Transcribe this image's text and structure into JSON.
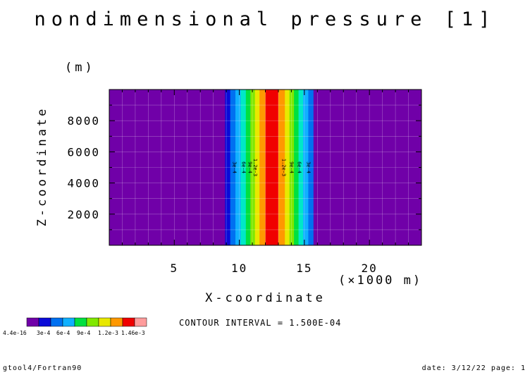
{
  "chart_data": {
    "type": "heatmap",
    "title": "nondimensional pressure [1]",
    "xlabel": "X-coordinate",
    "ylabel": "Z-coordinate",
    "x_unit_label": "(×1000 m)",
    "y_unit_label": "(m)",
    "xlim": [
      0,
      24
    ],
    "ylim": [
      0,
      10000
    ],
    "x_ticks": [
      5,
      10,
      15,
      20
    ],
    "y_ticks": [
      2000,
      4000,
      6000,
      8000
    ],
    "bands": [
      {
        "x0": 0.0,
        "x1": 8.9,
        "level": 0
      },
      {
        "x0": 8.9,
        "x1": 9.3,
        "level": 1
      },
      {
        "x0": 9.3,
        "x1": 9.7,
        "level": 2
      },
      {
        "x0": 9.7,
        "x1": 10.1,
        "level": 3
      },
      {
        "x0": 10.1,
        "x1": 10.5,
        "level": 4
      },
      {
        "x0": 10.5,
        "x1": 10.85,
        "level": 5
      },
      {
        "x0": 10.85,
        "x1": 11.2,
        "level": 6
      },
      {
        "x0": 11.2,
        "x1": 11.55,
        "level": 7
      },
      {
        "x0": 11.55,
        "x1": 12.0,
        "level": 8
      },
      {
        "x0": 12.0,
        "x1": 13.0,
        "level": 9
      },
      {
        "x0": 13.0,
        "x1": 13.5,
        "level": 8
      },
      {
        "x0": 13.5,
        "x1": 13.85,
        "level": 7
      },
      {
        "x0": 13.85,
        "x1": 14.2,
        "level": 6
      },
      {
        "x0": 14.2,
        "x1": 14.55,
        "level": 5
      },
      {
        "x0": 14.55,
        "x1": 14.9,
        "level": 4
      },
      {
        "x0": 14.9,
        "x1": 15.3,
        "level": 3
      },
      {
        "x0": 15.3,
        "x1": 15.7,
        "level": 2
      },
      {
        "x0": 15.7,
        "x1": 24.0,
        "level": 0
      }
    ],
    "level_colors": [
      "#7000a8",
      "#0a0ad8",
      "#0070f0",
      "#10b0ff",
      "#00e8c8",
      "#00e040",
      "#80e800",
      "#e8e800",
      "#ff9800",
      "#f00000",
      "#ff9c9c"
    ],
    "contour_labels": [
      {
        "x": 9.5,
        "text": "3e-4"
      },
      {
        "x": 10.2,
        "text": "6e-4"
      },
      {
        "x": 10.7,
        "text": "9e-4"
      },
      {
        "x": 11.1,
        "text": "1.2e-3"
      },
      {
        "x": 13.3,
        "text": "1.2e-3"
      },
      {
        "x": 13.9,
        "text": "9e-4"
      },
      {
        "x": 14.5,
        "text": "6e-4"
      },
      {
        "x": 15.2,
        "text": "3e-4"
      }
    ],
    "colorbar": {
      "colors": [
        "#7000a8",
        "#0a0ad8",
        "#0070f0",
        "#10b0ff",
        "#00e040",
        "#80e800",
        "#e8e800",
        "#ff9800",
        "#f00000",
        "#ff9c9c"
      ],
      "labels": [
        "4.4e-16",
        "3e-4",
        "6e-4",
        "9e-4",
        "1.2e-3",
        "1.46e-3"
      ]
    },
    "contour_interval_text": "CONTOUR INTERVAL = 1.500E-04"
  },
  "footer": {
    "left": "gtool4/Fortran90",
    "right": "date: 3/12/22 page: 1"
  }
}
